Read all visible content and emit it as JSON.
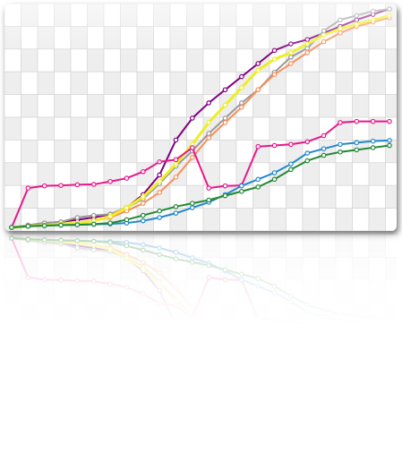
{
  "chart_data": {
    "type": "line",
    "x": [
      1,
      2,
      3,
      4,
      5,
      6,
      7,
      8,
      9,
      10,
      11,
      12,
      13,
      14,
      15,
      16,
      17,
      18,
      19,
      20,
      21,
      22,
      23,
      24
    ],
    "ylim": [
      0,
      10
    ],
    "grid": true,
    "legend": "none",
    "series": [
      {
        "color": "#800080",
        "values": [
          0.0,
          0.1,
          0.2,
          0.25,
          0.35,
          0.45,
          0.6,
          0.9,
          1.5,
          2.4,
          4.0,
          5.0,
          5.7,
          6.3,
          6.9,
          7.5,
          8.1,
          8.4,
          8.6,
          8.9,
          9.2,
          9.5,
          9.75,
          10.0
        ]
      },
      {
        "color": "#999999",
        "values": [
          0.0,
          0.1,
          0.2,
          0.25,
          0.45,
          0.55,
          0.6,
          0.9,
          1.3,
          2.0,
          2.8,
          3.5,
          4.3,
          5.0,
          5.7,
          6.3,
          7.1,
          7.8,
          8.2,
          9.0,
          9.5,
          9.7,
          9.9,
          10.0
        ]
      },
      {
        "color": "#FA8F5A",
        "values": [
          0.0,
          0.05,
          0.1,
          0.15,
          0.2,
          0.3,
          0.45,
          0.75,
          1.1,
          1.6,
          2.3,
          3.2,
          4.1,
          4.8,
          5.5,
          6.3,
          7.0,
          7.5,
          8.0,
          8.5,
          8.9,
          9.2,
          9.4,
          9.6
        ]
      },
      {
        "color": "#EEEE22",
        "values": [
          0.0,
          0.05,
          0.1,
          0.15,
          0.2,
          0.3,
          0.5,
          0.9,
          1.4,
          2.1,
          2.9,
          3.8,
          4.8,
          5.6,
          6.4,
          7.2,
          7.7,
          8.0,
          8.4,
          8.8,
          9.1,
          9.3,
          9.5,
          9.7
        ]
      },
      {
        "color": "#E8188C",
        "values": [
          0.0,
          1.8,
          1.9,
          1.92,
          1.95,
          1.97,
          2.1,
          2.25,
          2.55,
          3.0,
          3.1,
          3.65,
          1.8,
          1.9,
          1.92,
          3.7,
          3.75,
          3.8,
          3.92,
          4.2,
          4.8,
          4.85,
          4.85,
          4.85
        ]
      },
      {
        "color": "#2288CC",
        "values": [
          0.0,
          0.05,
          0.08,
          0.1,
          0.12,
          0.14,
          0.16,
          0.2,
          0.3,
          0.45,
          0.65,
          0.9,
          1.15,
          1.5,
          1.9,
          2.2,
          2.5,
          2.9,
          3.4,
          3.6,
          3.8,
          3.88,
          3.95,
          3.98
        ]
      },
      {
        "color": "#228833",
        "values": [
          0.0,
          0.05,
          0.08,
          0.1,
          0.12,
          0.15,
          0.2,
          0.35,
          0.55,
          0.75,
          0.95,
          1.1,
          1.25,
          1.45,
          1.65,
          1.85,
          2.2,
          2.65,
          3.05,
          3.3,
          3.45,
          3.55,
          3.65,
          3.75
        ]
      }
    ]
  }
}
